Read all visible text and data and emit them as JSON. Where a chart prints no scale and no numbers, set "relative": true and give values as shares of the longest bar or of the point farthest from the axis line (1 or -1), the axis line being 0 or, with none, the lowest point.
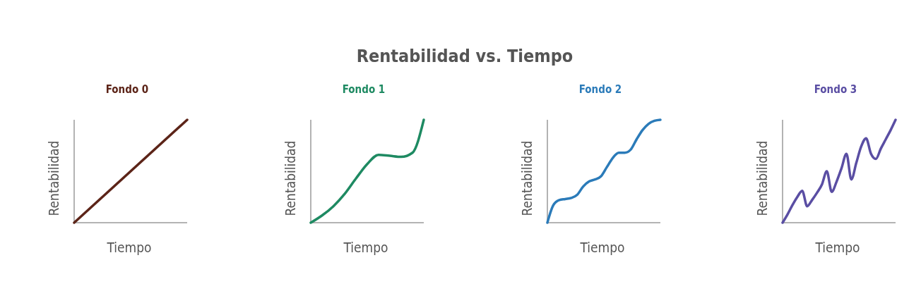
{
  "chart_data": [
    {
      "type": "other",
      "title": "Rentabilidad vs. Tiempo"
    },
    {
      "type": "line",
      "title": "Fondo 0",
      "xlabel": "Tiempo",
      "ylabel": "Rentabilidad",
      "relative": true,
      "categories": [
        null,
        null
      ],
      "series": [
        {
          "color": "#5c2418",
          "values": [
            0,
            1
          ]
        }
      ]
    },
    {
      "type": "line",
      "title": "Fondo 1",
      "xlabel": "Tiempo",
      "ylabel": "Rentabilidad",
      "relative": true,
      "categories": [
        null,
        null,
        null,
        null,
        null,
        null,
        null,
        null,
        null,
        null,
        null
      ],
      "series": [
        {
          "color": "#1e8a62",
          "values": [
            0,
            0.07,
            0.16,
            0.28,
            0.43,
            0.57,
            0.66,
            0.65,
            0.64,
            0.68,
            1
          ]
        }
      ]
    },
    {
      "type": "line",
      "title": "Fondo 2",
      "xlabel": "Tiempo",
      "ylabel": "Rentabilidad",
      "relative": true,
      "categories": [
        null,
        null,
        null,
        null,
        null,
        null,
        null,
        null,
        null,
        null,
        null,
        null,
        null,
        null,
        null,
        null,
        null,
        null,
        null,
        null
      ],
      "series": [
        {
          "color": "#2b7bb9",
          "values": [
            0,
            0.17,
            0.22,
            0.23,
            0.24,
            0.27,
            0.35,
            0.4,
            0.42,
            0.45,
            0.54,
            0.63,
            0.68,
            0.68,
            0.71,
            0.81,
            0.9,
            0.96,
            0.99,
            1
          ]
        }
      ]
    },
    {
      "type": "line",
      "title": "Fondo 3",
      "xlabel": "Tiempo",
      "ylabel": "Rentabilidad",
      "relative": true,
      "categories": [
        null,
        null,
        null,
        null,
        null,
        null,
        null,
        null,
        null,
        null,
        null,
        null,
        null,
        null,
        null,
        null,
        null,
        null,
        null,
        null,
        null,
        null,
        null,
        null
      ],
      "series": [
        {
          "color": "#5a4ea3",
          "values": [
            0,
            0.08,
            0.17,
            0.25,
            0.31,
            0.16,
            0.22,
            0.29,
            0.37,
            0.5,
            0.3,
            0.4,
            0.53,
            0.67,
            0.42,
            0.58,
            0.74,
            0.82,
            0.67,
            0.62,
            0.72,
            0.81,
            0.9,
            1
          ]
        }
      ]
    }
  ]
}
